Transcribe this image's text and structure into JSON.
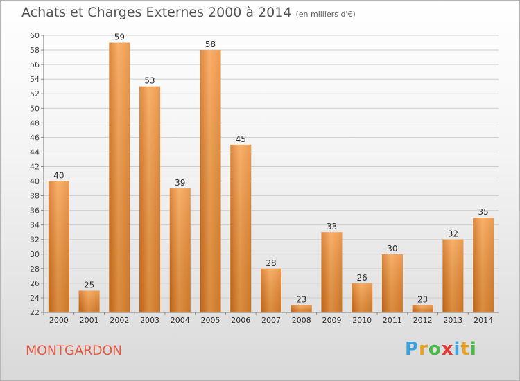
{
  "chart_data": {
    "type": "bar",
    "title": "Achats et Charges Externes 2000 à 2014",
    "unit_label": "(en milliers d'€)",
    "categories": [
      "2000",
      "2001",
      "2002",
      "2003",
      "2004",
      "2005",
      "2006",
      "2007",
      "2008",
      "2009",
      "2010",
      "2011",
      "2012",
      "2013",
      "2014"
    ],
    "values": [
      40,
      25,
      59,
      53,
      39,
      58,
      45,
      28,
      23,
      33,
      26,
      30,
      23,
      32,
      35
    ],
    "ylim": [
      22,
      60
    ],
    "yticks": [
      22,
      24,
      26,
      28,
      30,
      32,
      34,
      36,
      38,
      40,
      42,
      44,
      46,
      48,
      50,
      52,
      54,
      56,
      58,
      60
    ],
    "grid": true,
    "bar_color": "#e88a2e",
    "xlabel": "",
    "ylabel": ""
  },
  "place_name": "MONTGARDON",
  "logo": {
    "letters": [
      "P",
      "r",
      "o",
      "x",
      "i",
      "t",
      "i"
    ],
    "colors": [
      "#3aa0dc",
      "#e8a020",
      "#4ab848",
      "#e03a3a",
      "#3aa0dc",
      "#e8a020",
      "#4ab848"
    ]
  }
}
